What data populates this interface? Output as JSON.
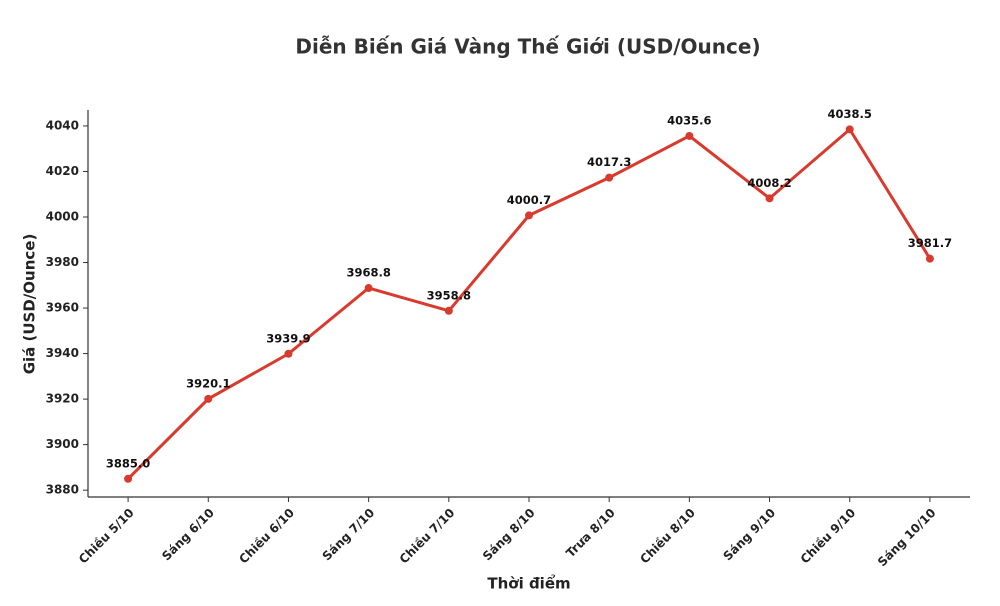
{
  "chart_data": {
    "type": "line",
    "title": "Diễn Biến Giá Vàng Thế Giới (USD/Ounce)",
    "x_label": "Thời điểm",
    "y_label": "Giá (USD/Ounce)",
    "categories": [
      "Chiều 5/10",
      "Sáng 6/10",
      "Chiều 6/10",
      "Sáng 7/10",
      "Chiều 7/10",
      "Sáng 8/10",
      "Trưa 8/10",
      "Chiều 8/10",
      "Sáng 9/10",
      "Chiều 9/10",
      "Sáng 10/10"
    ],
    "series": [
      {
        "name": "Giá",
        "color": "#d93a2e",
        "values": [
          3885.0,
          3920.1,
          3939.9,
          3968.8,
          3958.8,
          4000.7,
          4017.3,
          4035.6,
          4008.2,
          4038.5,
          3981.7
        ],
        "value_labels": [
          "3885.0",
          "3920.1",
          "3939.9",
          "3968.8",
          "3958.8",
          "4000.7",
          "4017.3",
          "4035.6",
          "4008.2",
          "4038.5",
          "3981.7"
        ]
      }
    ],
    "ylim": [
      3877,
      4047
    ],
    "yticks": [
      3880,
      3900,
      3920,
      3940,
      3960,
      3980,
      4000,
      4020,
      4040
    ],
    "grid": false
  }
}
